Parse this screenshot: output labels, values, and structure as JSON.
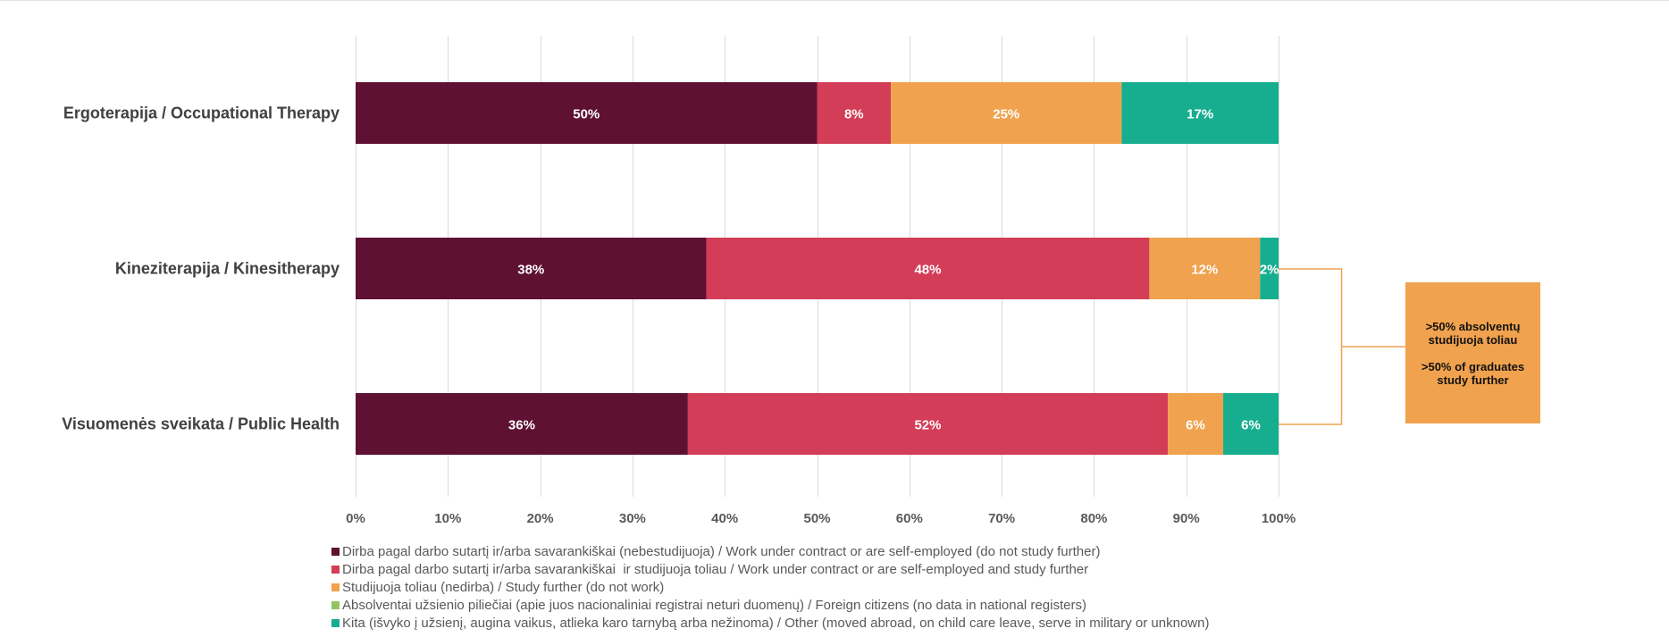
{
  "chart_data": {
    "type": "bar",
    "orientation": "horizontal",
    "stacked": true,
    "categories": [
      "Ergoterapija / Occupational Therapy",
      "Kineziterapija / Kinesitherapy",
      "Visuomenės sveikata / Public Health"
    ],
    "x_ticks": [
      "0%",
      "10%",
      "20%",
      "30%",
      "40%",
      "50%",
      "60%",
      "70%",
      "80%",
      "90%",
      "100%"
    ],
    "xlim": [
      0,
      100
    ],
    "grid": true,
    "legend_position": "bottom",
    "series": [
      {
        "name": "Dirba pagal darbo sutartį ir/arba savarankiškai (nebestudijuoja) / Work under contract or are self-employed (do not study further)",
        "color": "#5e1133",
        "values": [
          50,
          38,
          36
        ],
        "labels": [
          "50%",
          "38%",
          "36%"
        ]
      },
      {
        "name": "Dirba pagal darbo sutartį ir/arba savarankiškai  ir studijuoja toliau / Work under contract or are self-employed and study further",
        "color": "#d33d57",
        "values": [
          8,
          48,
          52
        ],
        "labels": [
          "8%",
          "48%",
          "52%"
        ]
      },
      {
        "name": "Studijuoja toliau (nedirba) / Study further (do not work)",
        "color": "#f0a24e",
        "values": [
          25,
          12,
          6
        ],
        "labels": [
          "25%",
          "12%",
          "6%"
        ]
      },
      {
        "name": "Absolventai užsienio piliečiai (apie juos nacionaliniai registrai neturi duomenų) / Foreign citizens (no data in national registers)",
        "color": "#92c562",
        "values": [
          0,
          0,
          0
        ],
        "labels": [
          "",
          "",
          ""
        ]
      },
      {
        "name": "Kita (išvyko į užsienį, augina vaikus, atlieka karo tarnybą arba nežinoma) / Other (moved abroad, on child care leave, serve in military or unknown)",
        "color": "#17ae8f",
        "values": [
          17,
          2,
          6
        ],
        "labels": [
          "17%",
          "2%",
          "6%"
        ]
      }
    ],
    "annotation": {
      "lines": [
        ">50% absolventų",
        "studijuoja toliau",
        "",
        ">50% of graduates",
        "study further"
      ],
      "color": "#f0a24e",
      "applies_to": [
        "Kineziterapija / Kinesitherapy",
        "Visuomenės sveikata / Public Health"
      ]
    }
  }
}
